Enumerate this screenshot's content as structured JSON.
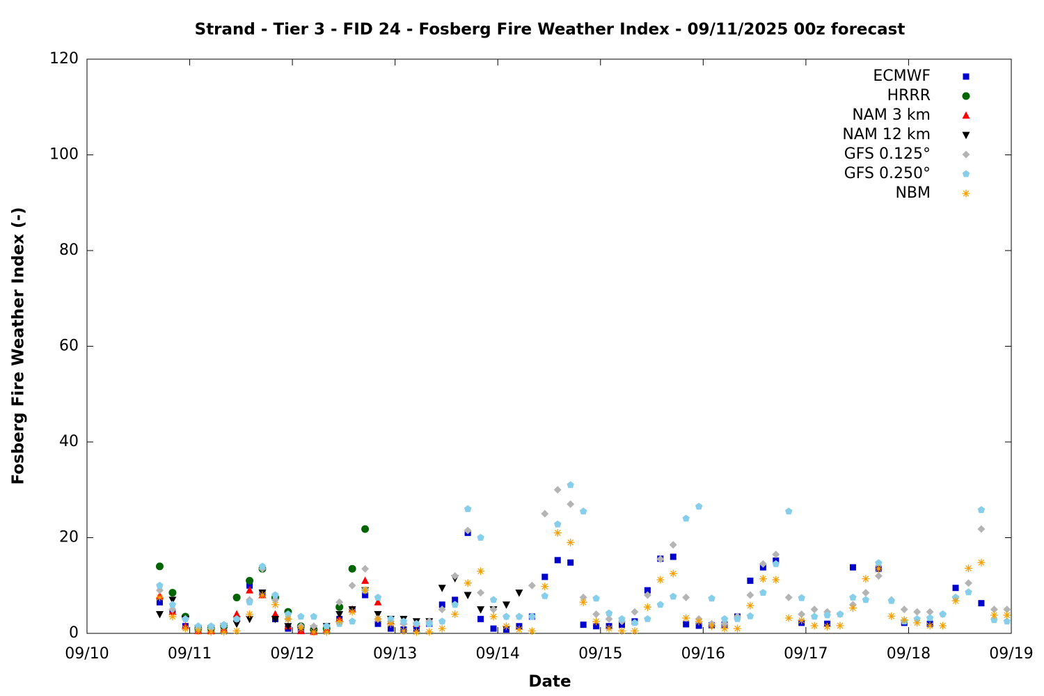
{
  "chart_data": {
    "type": "scatter",
    "title": "Strand - Tier 3 - FID 24 - Fosberg Fire Weather Index - 09/11/2025 00z forecast",
    "x_label": "Date",
    "y_label": "Fosberg Fire Weather Index (-)",
    "xlim": [
      0,
      9
    ],
    "ylim": [
      0,
      120
    ],
    "xticks": [
      {
        "value": 0,
        "label": "09/10"
      },
      {
        "value": 1,
        "label": "09/11"
      },
      {
        "value": 2,
        "label": "09/12"
      },
      {
        "value": 3,
        "label": "09/13"
      },
      {
        "value": 4,
        "label": "09/14"
      },
      {
        "value": 5,
        "label": "09/15"
      },
      {
        "value": 6,
        "label": "09/16"
      },
      {
        "value": 7,
        "label": "09/17"
      },
      {
        "value": 8,
        "label": "09/18"
      },
      {
        "value": 9,
        "label": "09/19"
      }
    ],
    "yticks": [
      0,
      20,
      40,
      60,
      80,
      100,
      120
    ],
    "legend": "upper right",
    "series": [
      {
        "name": "ECMWF",
        "color": "#0000cc",
        "marker": "square",
        "x": [
          0.708,
          0.833,
          0.958,
          1.083,
          1.208,
          1.333,
          1.458,
          1.583,
          1.708,
          1.833,
          1.958,
          2.083,
          2.208,
          2.333,
          2.458,
          2.583,
          2.708,
          2.833,
          2.958,
          3.083,
          3.208,
          3.333,
          3.458,
          3.583,
          3.708,
          3.833,
          3.958,
          4.083,
          4.208,
          4.333,
          4.458,
          4.583,
          4.708,
          4.833,
          4.958,
          5.083,
          5.208,
          5.333,
          5.458,
          5.583,
          5.708,
          5.833,
          5.958,
          6.083,
          6.208,
          6.333,
          6.458,
          6.583,
          6.708,
          6.958,
          7.208,
          7.458,
          7.708,
          7.958,
          8.208,
          8.458,
          8.708
        ],
        "values": [
          6.5,
          4.5,
          1.5,
          0.5,
          0.5,
          0.8,
          3,
          10,
          8.5,
          3,
          1,
          0.5,
          0.5,
          1,
          3,
          5,
          8,
          2,
          1,
          0.8,
          1,
          2,
          6,
          7,
          21,
          3,
          1,
          0.8,
          1.5,
          3.5,
          11.8,
          15.3,
          14.8,
          1.8,
          1.5,
          1.5,
          1.8,
          2.5,
          9,
          15.6,
          16,
          1.9,
          1.6,
          1.7,
          1.8,
          3.5,
          11,
          13.8,
          15.2,
          2.2,
          2.0,
          13.8,
          13.5,
          2.2,
          2.0,
          9.5,
          6.3
        ]
      },
      {
        "name": "HRRR",
        "color": "#006400",
        "marker": "circle",
        "x": [
          0.708,
          0.833,
          0.958,
          1.083,
          1.208,
          1.333,
          1.458,
          1.583,
          1.708,
          1.833,
          1.958,
          2.083,
          2.208,
          2.333,
          2.458,
          2.583,
          2.708
        ],
        "values": [
          14,
          8.5,
          3.5,
          1,
          1,
          1.5,
          7.5,
          11,
          13.5,
          7.5,
          4.5,
          1.5,
          0.8,
          1,
          5.5,
          13.5,
          21.8
        ]
      },
      {
        "name": "NAM 3 km",
        "color": "#ff0000",
        "marker": "triangle-up",
        "x": [
          0.708,
          0.833,
          0.958,
          1.083,
          1.208,
          1.333,
          1.458,
          1.583,
          1.708,
          1.833,
          1.958,
          2.083,
          2.208,
          2.333,
          2.458,
          2.583,
          2.708,
          2.833,
          2.958,
          3.083,
          3.208
        ],
        "values": [
          7.8,
          4.5,
          1.5,
          0.5,
          0.5,
          0.8,
          4,
          9,
          8,
          4,
          1.5,
          0.5,
          0.3,
          0.8,
          3,
          5,
          11,
          6.5,
          2.5,
          2.5,
          2
        ]
      },
      {
        "name": "NAM 12 km",
        "color": "#000000",
        "marker": "triangle-down",
        "x": [
          0.708,
          0.833,
          0.958,
          1.083,
          1.208,
          1.333,
          1.458,
          1.583,
          1.708,
          1.833,
          1.958,
          2.083,
          2.208,
          2.333,
          2.458,
          2.583,
          2.708,
          2.833,
          2.958,
          3.083,
          3.208,
          3.333,
          3.458,
          3.583,
          3.708,
          3.833,
          3.958,
          4.083,
          4.208
        ],
        "values": [
          4,
          7,
          3,
          1,
          1,
          1.5,
          2,
          3,
          8.5,
          3,
          1.5,
          1,
          1,
          1.5,
          4,
          5,
          9,
          4,
          3,
          3,
          2.5,
          2.5,
          9.5,
          11.5,
          8,
          5,
          5,
          6,
          8.5
        ]
      },
      {
        "name": "GFS 0.125°",
        "color": "#b4b4b4",
        "marker": "diamond",
        "x": [
          0.708,
          0.833,
          0.958,
          1.083,
          1.208,
          1.333,
          1.458,
          1.583,
          1.708,
          1.833,
          1.958,
          2.083,
          2.208,
          2.333,
          2.458,
          2.583,
          2.708,
          2.833,
          2.958,
          3.083,
          3.208,
          3.333,
          3.458,
          3.583,
          3.708,
          3.833,
          3.958,
          4.083,
          4.208,
          4.333,
          4.458,
          4.583,
          4.708,
          4.833,
          4.958,
          5.083,
          5.208,
          5.333,
          5.458,
          5.583,
          5.708,
          5.833,
          5.958,
          6.083,
          6.208,
          6.333,
          6.458,
          6.583,
          6.708,
          6.833,
          6.958,
          7.083,
          7.208,
          7.333,
          7.458,
          7.583,
          7.708,
          7.833,
          7.958,
          8.083,
          8.208,
          8.333,
          8.458,
          8.583,
          8.708,
          8.833,
          8.958
        ],
        "values": [
          9,
          5,
          3,
          1,
          1,
          1.5,
          3,
          7,
          13.5,
          7,
          3,
          1.5,
          1.5,
          1.5,
          6.5,
          10,
          13.5,
          3,
          2.5,
          2,
          2,
          2.5,
          5,
          12,
          21.5,
          8.5,
          5,
          3.5,
          3.5,
          10,
          25,
          30,
          27,
          7.5,
          4,
          3,
          2.5,
          4.5,
          8,
          15.5,
          18.5,
          7.5,
          3,
          2,
          2,
          3.5,
          8,
          14.5,
          16.5,
          7.5,
          4,
          5,
          4.5,
          4,
          6,
          8.5,
          12,
          7,
          5,
          4.5,
          4.5,
          4,
          7.5,
          10.5,
          21.8,
          5,
          5
        ]
      },
      {
        "name": "GFS 0.250°",
        "color": "#87ceeb",
        "marker": "pentagon",
        "x": [
          0.708,
          0.833,
          0.958,
          1.083,
          1.208,
          1.333,
          1.458,
          1.583,
          1.708,
          1.833,
          1.958,
          2.083,
          2.208,
          2.333,
          2.458,
          2.583,
          2.708,
          2.833,
          2.958,
          3.083,
          3.208,
          3.333,
          3.458,
          3.583,
          3.708,
          3.833,
          3.958,
          4.083,
          4.208,
          4.333,
          4.458,
          4.583,
          4.708,
          4.833,
          4.958,
          5.083,
          5.208,
          5.333,
          5.458,
          5.583,
          5.708,
          5.833,
          5.958,
          6.083,
          6.208,
          6.333,
          6.458,
          6.583,
          6.708,
          6.833,
          6.958,
          7.083,
          7.208,
          7.333,
          7.458,
          7.583,
          7.708,
          7.833,
          7.958,
          8.083,
          8.208,
          8.333,
          8.458,
          8.583,
          8.708,
          8.833,
          8.958
        ],
        "values": [
          10,
          6,
          3,
          1.5,
          1.5,
          1.8,
          3,
          6.5,
          14,
          8,
          4,
          3.5,
          3.5,
          1.5,
          2,
          2.5,
          9,
          7.5,
          3,
          2.5,
          2,
          2,
          2.5,
          6,
          26,
          20,
          7,
          3.5,
          3.5,
          3.5,
          7.8,
          22.8,
          31,
          25.5,
          7.3,
          4.2,
          3,
          2.2,
          3,
          6,
          7.7,
          24,
          26.5,
          7.3,
          3,
          3,
          3.6,
          8.5,
          14.5,
          25.5,
          7.4,
          3.5,
          3.8,
          4,
          7.5,
          7,
          14.7,
          6.8,
          2.5,
          3,
          3.2,
          4,
          7.5,
          8.6,
          25.8,
          2.8,
          2.5
        ]
      },
      {
        "name": "NBM",
        "color": "#f5a000",
        "marker": "asterisk",
        "x": [
          0.708,
          0.833,
          0.958,
          1.083,
          1.208,
          1.333,
          1.458,
          1.583,
          1.708,
          1.833,
          1.958,
          2.083,
          2.208,
          2.333,
          2.458,
          2.583,
          2.708,
          2.833,
          2.958,
          3.083,
          3.208,
          3.333,
          3.458,
          3.583,
          3.708,
          3.833,
          3.958,
          4.083,
          4.208,
          4.333,
          4.458,
          4.583,
          4.708,
          4.833,
          4.958,
          5.083,
          5.208,
          5.333,
          5.458,
          5.583,
          5.708,
          5.833,
          5.958,
          6.083,
          6.208,
          6.333,
          6.458,
          6.583,
          6.708,
          6.833,
          6.958,
          7.083,
          7.208,
          7.333,
          7.458,
          7.583,
          7.708,
          7.833,
          7.958,
          8.083,
          8.208,
          8.333,
          8.458,
          8.583,
          8.708,
          8.833,
          8.958
        ],
        "values": [
          7.5,
          3.5,
          1,
          0.5,
          0.3,
          0.3,
          0.5,
          4,
          8,
          6,
          3,
          1,
          0.3,
          0.3,
          2.5,
          4.5,
          9,
          3,
          2,
          0.5,
          0.3,
          0.3,
          1,
          4,
          10.5,
          13,
          3.5,
          1.5,
          0.8,
          0.5,
          9.8,
          21,
          19,
          6.5,
          2.5,
          1,
          0.5,
          0.5,
          5.5,
          11.2,
          12.5,
          3.2,
          2.5,
          1.5,
          1,
          1,
          5.8,
          11.4,
          11.2,
          3.2,
          2.7,
          1.6,
          1.4,
          1.6,
          5.3,
          11.4,
          13.5,
          3.6,
          2.8,
          2.2,
          1.6,
          1.6,
          6.8,
          13.6,
          14.8,
          3.8,
          3.8
        ]
      }
    ]
  }
}
